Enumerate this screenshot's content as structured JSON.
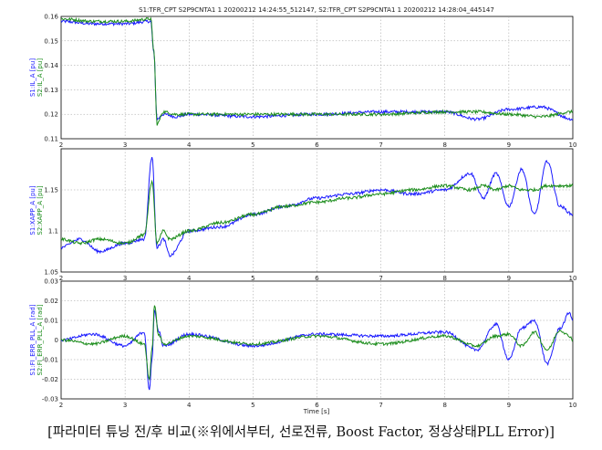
{
  "figure": {
    "title": "S1:TFR_CPT S2P9CNTA1 1 20200212 14:24:55_512147, S2:TFR_CPT S2P9CNTA1 1 20200212 14:28:04_445147",
    "xlabel": "Time [s]",
    "caption": "[파라미터 튜닝 전/후 비교(※위에서부터, 선로전류, Boost Factor, 정상상태PLL Error)]",
    "colors": {
      "series1": "#1a1aff",
      "series2": "#1a8c1a",
      "grid": "#9a9a9a"
    }
  },
  "chart_data": [
    {
      "type": "line",
      "grid": true,
      "ylabel_s1": "S1:IL_A [pu]",
      "ylabel_s2": "S2:IL_A [pu]",
      "xlim": [
        2,
        10
      ],
      "ylim": [
        0.11,
        0.16
      ],
      "xticks": [
        "2",
        "3",
        "4",
        "5",
        "6",
        "7",
        "8",
        "9",
        "10"
      ],
      "yticks": [
        "0.11",
        "0.12",
        "0.13",
        "0.14",
        "0.15",
        "0.16"
      ],
      "series": [
        {
          "x": [
            2,
            2.5,
            3,
            3.4,
            3.45,
            3.5,
            3.6,
            3.8,
            4,
            5,
            6,
            7,
            8,
            8.5,
            9,
            9.5,
            10
          ],
          "values": [
            0.158,
            0.157,
            0.157,
            0.158,
            0.145,
            0.118,
            0.12,
            0.119,
            0.12,
            0.119,
            0.12,
            0.121,
            0.121,
            0.118,
            0.122,
            0.123,
            0.118
          ]
        },
        {
          "x": [
            2,
            2.5,
            3,
            3.4,
            3.45,
            3.5,
            3.6,
            3.8,
            4,
            5,
            6,
            7,
            8,
            8.5,
            9,
            9.5,
            10
          ],
          "values": [
            0.159,
            0.158,
            0.158,
            0.159,
            0.146,
            0.116,
            0.121,
            0.12,
            0.12,
            0.12,
            0.12,
            0.12,
            0.121,
            0.121,
            0.12,
            0.119,
            0.121
          ]
        }
      ]
    },
    {
      "type": "line",
      "grid": true,
      "ylabel_s1": "S1:XAPP_A [pu]",
      "ylabel_s2": "S2:XAPP_A [pu]",
      "xlim": [
        2,
        10
      ],
      "ylim": [
        1.05,
        1.2
      ],
      "xticks": [
        "2",
        "3",
        "4",
        "5",
        "6",
        "7",
        "8",
        "9",
        "10"
      ],
      "yticks": [
        "1.05",
        "1.1",
        "1.15"
      ],
      "series": [
        {
          "x": [
            2,
            2.3,
            2.6,
            3,
            3.3,
            3.42,
            3.5,
            3.6,
            3.7,
            4,
            4.5,
            5,
            5.5,
            6,
            6.5,
            7,
            7.5,
            8,
            8.4,
            8.6,
            8.8,
            9,
            9.2,
            9.4,
            9.6,
            9.8,
            10
          ],
          "values": [
            1.08,
            1.09,
            1.075,
            1.085,
            1.09,
            1.19,
            1.08,
            1.09,
            1.07,
            1.1,
            1.105,
            1.12,
            1.13,
            1.14,
            1.145,
            1.15,
            1.145,
            1.15,
            1.17,
            1.14,
            1.17,
            1.13,
            1.175,
            1.12,
            1.185,
            1.13,
            1.12
          ]
        },
        {
          "x": [
            2,
            2.3,
            2.6,
            3,
            3.3,
            3.42,
            3.5,
            3.6,
            3.7,
            4,
            4.5,
            5,
            5.5,
            6,
            6.5,
            7,
            7.5,
            8,
            8.4,
            8.6,
            8.8,
            9,
            9.2,
            9.4,
            9.6,
            9.8,
            10
          ],
          "values": [
            1.09,
            1.085,
            1.09,
            1.085,
            1.095,
            1.16,
            1.085,
            1.1,
            1.09,
            1.1,
            1.11,
            1.12,
            1.13,
            1.135,
            1.14,
            1.145,
            1.15,
            1.155,
            1.15,
            1.155,
            1.15,
            1.155,
            1.15,
            1.15,
            1.155,
            1.155,
            1.155
          ]
        }
      ]
    },
    {
      "type": "line",
      "grid": true,
      "ylabel_s1": "S1:FI_ERR_PLL_A [rad]",
      "ylabel_s2": "S2:FI_ERR_PLL_A [rad]",
      "xlim": [
        2,
        10
      ],
      "ylim": [
        -0.03,
        0.03
      ],
      "xticks": [
        "2",
        "3",
        "4",
        "5",
        "6",
        "7",
        "8",
        "9",
        "10"
      ],
      "yticks": [
        "-0.03",
        "-0.02",
        "-0.01",
        "0",
        "0.01",
        "0.02",
        "0.03"
      ],
      "series": [
        {
          "x": [
            2,
            2.5,
            3,
            3.3,
            3.38,
            3.42,
            3.46,
            3.52,
            3.6,
            4,
            5,
            6,
            7,
            8,
            8.5,
            8.8,
            9.0,
            9.2,
            9.4,
            9.6,
            9.8,
            9.95,
            10
          ],
          "values": [
            0,
            0.003,
            -0.003,
            0.004,
            -0.026,
            -0.01,
            0.015,
            0.005,
            -0.003,
            0.003,
            -0.003,
            0.003,
            0.002,
            0.004,
            -0.005,
            0.008,
            -0.01,
            0.006,
            0.01,
            -0.012,
            0.006,
            0.014,
            0.01
          ]
        },
        {
          "x": [
            2,
            2.5,
            3,
            3.3,
            3.38,
            3.42,
            3.46,
            3.52,
            3.6,
            4,
            5,
            6,
            7,
            8,
            8.5,
            8.8,
            9.0,
            9.2,
            9.4,
            9.6,
            9.8,
            9.95,
            10
          ],
          "values": [
            0,
            -0.002,
            0.002,
            -0.002,
            -0.02,
            -0.005,
            0.018,
            0.003,
            -0.002,
            0.002,
            -0.002,
            0.002,
            -0.002,
            0.002,
            -0.003,
            0.002,
            0.003,
            -0.003,
            0.004,
            -0.005,
            0.005,
            0.002,
            0.0
          ]
        }
      ]
    }
  ]
}
